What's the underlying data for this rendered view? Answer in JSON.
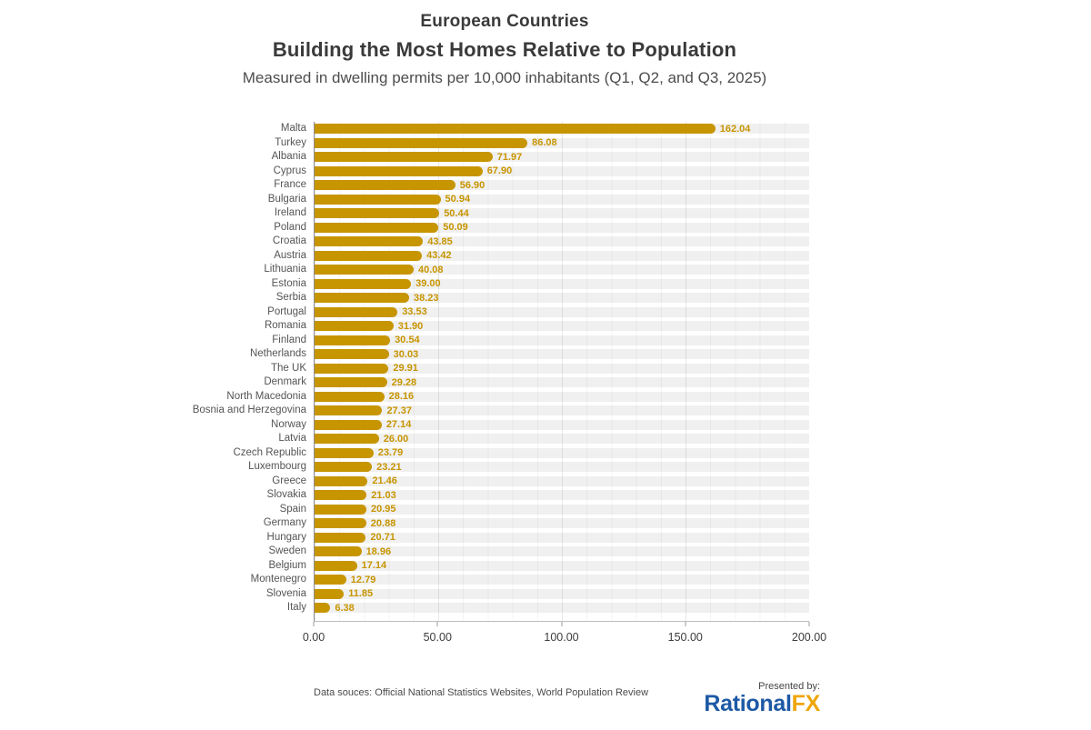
{
  "header": {
    "title_line1": "European Countries",
    "title_line2": "Building the Most Homes Relative to Population",
    "subtitle": "Measured in dwelling permits per 10,000 inhabitants (Q1, Q2, and Q3, 2025)"
  },
  "chart_data": {
    "type": "bar",
    "orientation": "horizontal",
    "title": "European Countries Building the Most Homes Relative to Population",
    "xlabel": "",
    "ylabel": "",
    "xlim": [
      0,
      200
    ],
    "x_ticks": [
      "0.00",
      "50.00",
      "100.00",
      "150.00",
      "200.00"
    ],
    "grid": "vertical, minor every 10 units, major every 50 units",
    "legend": "none",
    "bar_color": "#C79500",
    "value_label_color": "#C79500",
    "band_color": "#F0F0F0",
    "categories": [
      "Malta",
      "Turkey",
      "Albania",
      "Cyprus",
      "France",
      "Bulgaria",
      "Ireland",
      "Poland",
      "Croatia",
      "Austria",
      "Lithuania",
      "Estonia",
      "Serbia",
      "Portugal",
      "Romania",
      "Finland",
      "Netherlands",
      "The UK",
      "Denmark",
      "North Macedonia",
      "Bosnia and Herzegovina",
      "Norway",
      "Latvia",
      "Czech Republic",
      "Luxembourg",
      "Greece",
      "Slovakia",
      "Spain",
      "Germany",
      "Hungary",
      "Sweden",
      "Belgium",
      "Montenegro",
      "Slovenia",
      "Italy"
    ],
    "values": [
      162.04,
      86.08,
      71.97,
      67.9,
      56.9,
      50.94,
      50.44,
      50.09,
      43.85,
      43.42,
      40.08,
      39.0,
      38.23,
      33.53,
      31.9,
      30.54,
      30.03,
      29.91,
      29.28,
      28.16,
      27.37,
      27.14,
      26.0,
      23.79,
      23.21,
      21.46,
      21.03,
      20.95,
      20.88,
      20.71,
      18.96,
      17.14,
      12.79,
      11.85,
      6.38
    ]
  },
  "footer": {
    "source": "Data souces: Official National Statistics Websites, World Population Review",
    "presented_by": "Presented by:",
    "logo_part1": "Rational",
    "logo_part2": "FX",
    "logo_blue": "#1D59A5",
    "logo_gold": "#EFA50A"
  }
}
